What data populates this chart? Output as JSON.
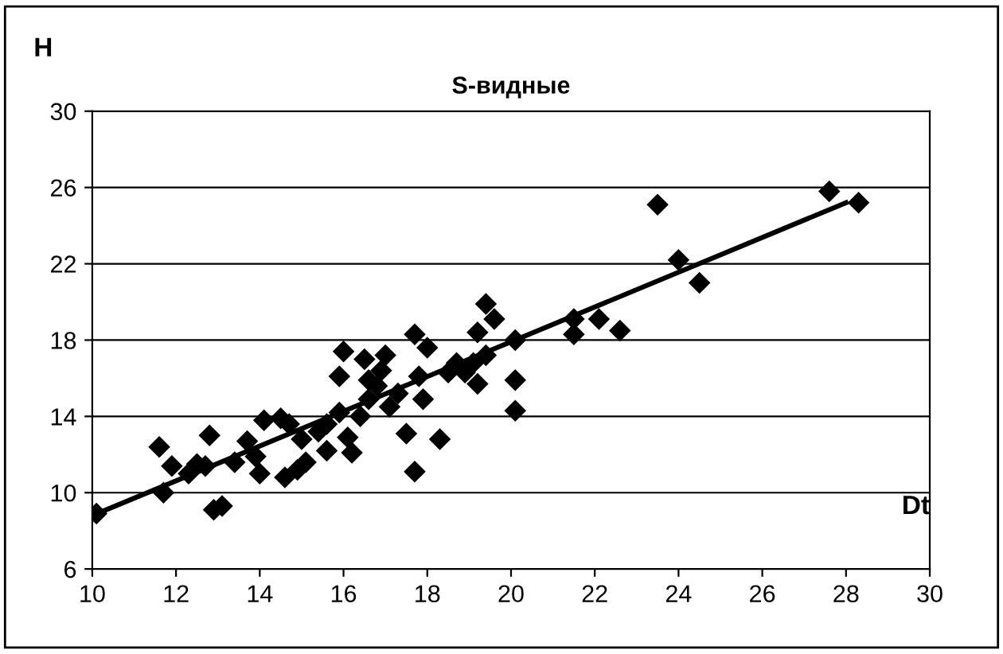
{
  "chart_data": {
    "type": "scatter",
    "title": "S-видные",
    "ylabel": "H",
    "xlabel": "Dt",
    "xlim": [
      10,
      30
    ],
    "ylim": [
      6,
      30
    ],
    "xticks": [
      10,
      12,
      14,
      16,
      18,
      20,
      22,
      24,
      26,
      28,
      30
    ],
    "yticks": [
      6,
      10,
      14,
      18,
      22,
      26,
      30
    ],
    "grid": "y",
    "legend": false,
    "series": [
      {
        "color": "#000000",
        "marker": "diamond",
        "x": [
          10.1,
          11.6,
          11.7,
          11.9,
          12.3,
          12.5,
          12.7,
          12.8,
          12.9,
          13.1,
          13.4,
          13.7,
          13.9,
          14.0,
          14.1,
          14.5,
          14.7,
          14.6,
          14.9,
          15.0,
          15.1,
          15.4,
          15.6,
          15.6,
          15.9,
          15.9,
          16.0,
          16.1,
          16.2,
          16.4,
          16.5,
          16.6,
          16.6,
          16.8,
          16.9,
          17.0,
          17.1,
          17.3,
          17.5,
          17.7,
          17.7,
          17.8,
          18.0,
          17.9,
          18.3,
          18.5,
          18.7,
          18.9,
          19.1,
          19.2,
          19.4,
          19.4,
          19.6,
          20.1,
          20.1,
          20.1,
          19.2,
          23.5,
          21.5,
          21.5,
          22.1,
          22.6,
          24.0,
          24.5,
          27.6,
          28.3
        ],
        "values": [
          8.9,
          12.4,
          10.0,
          11.4,
          11.0,
          11.5,
          11.4,
          13.0,
          9.1,
          9.3,
          11.6,
          12.7,
          11.9,
          11.0,
          13.8,
          13.9,
          13.6,
          10.8,
          11.2,
          12.8,
          11.6,
          13.2,
          13.6,
          12.2,
          14.2,
          16.1,
          17.4,
          12.9,
          12.1,
          14.0,
          17.0,
          15.9,
          14.9,
          15.6,
          16.4,
          17.2,
          14.5,
          15.2,
          13.1,
          11.1,
          18.3,
          16.1,
          17.6,
          14.9,
          12.8,
          16.3,
          16.8,
          16.3,
          16.8,
          18.4,
          19.9,
          17.2,
          19.1,
          18.0,
          15.9,
          14.3,
          15.7,
          25.1,
          19.1,
          18.3,
          19.1,
          18.5,
          22.2,
          21.0,
          25.8,
          25.2
        ]
      },
      {
        "type": "line",
        "marker": "none",
        "color": "#000000",
        "x": [
          10,
          28
        ],
        "values": [
          8.8,
          25.2
        ]
      }
    ]
  }
}
